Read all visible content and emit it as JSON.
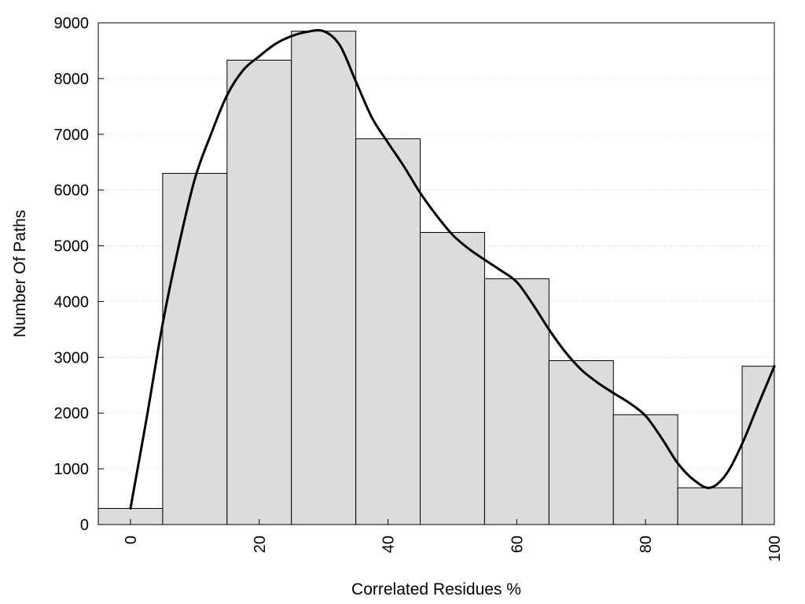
{
  "chart_data": {
    "type": "bar",
    "title": "",
    "xlabel": "Correlated Residues %",
    "ylabel": "Number Of Paths",
    "xlim": [
      -5,
      100
    ],
    "ylim": [
      0,
      9000
    ],
    "x_ticks": [
      0,
      20,
      40,
      60,
      80,
      100
    ],
    "y_ticks": [
      0,
      1000,
      2000,
      3000,
      4000,
      5000,
      6000,
      7000,
      8000,
      9000
    ],
    "grid": "horizontal-dotted",
    "bar_color": "#dcdcdc",
    "bar_edge_color": "#000000",
    "line_color": "#000000",
    "bins": [
      {
        "center": 0,
        "value": 290
      },
      {
        "center": 10,
        "value": 6300
      },
      {
        "center": 20,
        "value": 8330
      },
      {
        "center": 30,
        "value": 8850
      },
      {
        "center": 40,
        "value": 6920
      },
      {
        "center": 50,
        "value": 5240
      },
      {
        "center": 60,
        "value": 4410
      },
      {
        "center": 70,
        "value": 2940
      },
      {
        "center": 80,
        "value": 1970
      },
      {
        "center": 90,
        "value": 660
      },
      {
        "center": 100,
        "value": 2840
      }
    ],
    "curve": {
      "x": [
        0,
        2.5,
        5,
        7.5,
        10,
        12.5,
        15,
        17.5,
        20,
        22.5,
        25,
        27.5,
        30,
        32.5,
        35,
        37.5,
        40,
        42.5,
        45,
        47.5,
        50,
        52.5,
        55,
        57.5,
        60,
        62.5,
        65,
        67.5,
        70,
        72.5,
        75,
        77.5,
        80,
        82.5,
        85,
        87.5,
        90,
        92.5,
        95,
        97.5,
        100
      ],
      "y": [
        290,
        1900,
        3600,
        5000,
        6200,
        7000,
        7700,
        8150,
        8400,
        8620,
        8760,
        8840,
        8850,
        8600,
        7950,
        7300,
        6850,
        6420,
        5950,
        5550,
        5200,
        4950,
        4750,
        4560,
        4350,
        3950,
        3500,
        3100,
        2780,
        2550,
        2360,
        2180,
        1950,
        1550,
        1100,
        800,
        660,
        900,
        1450,
        2150,
        2840
      ]
    }
  }
}
